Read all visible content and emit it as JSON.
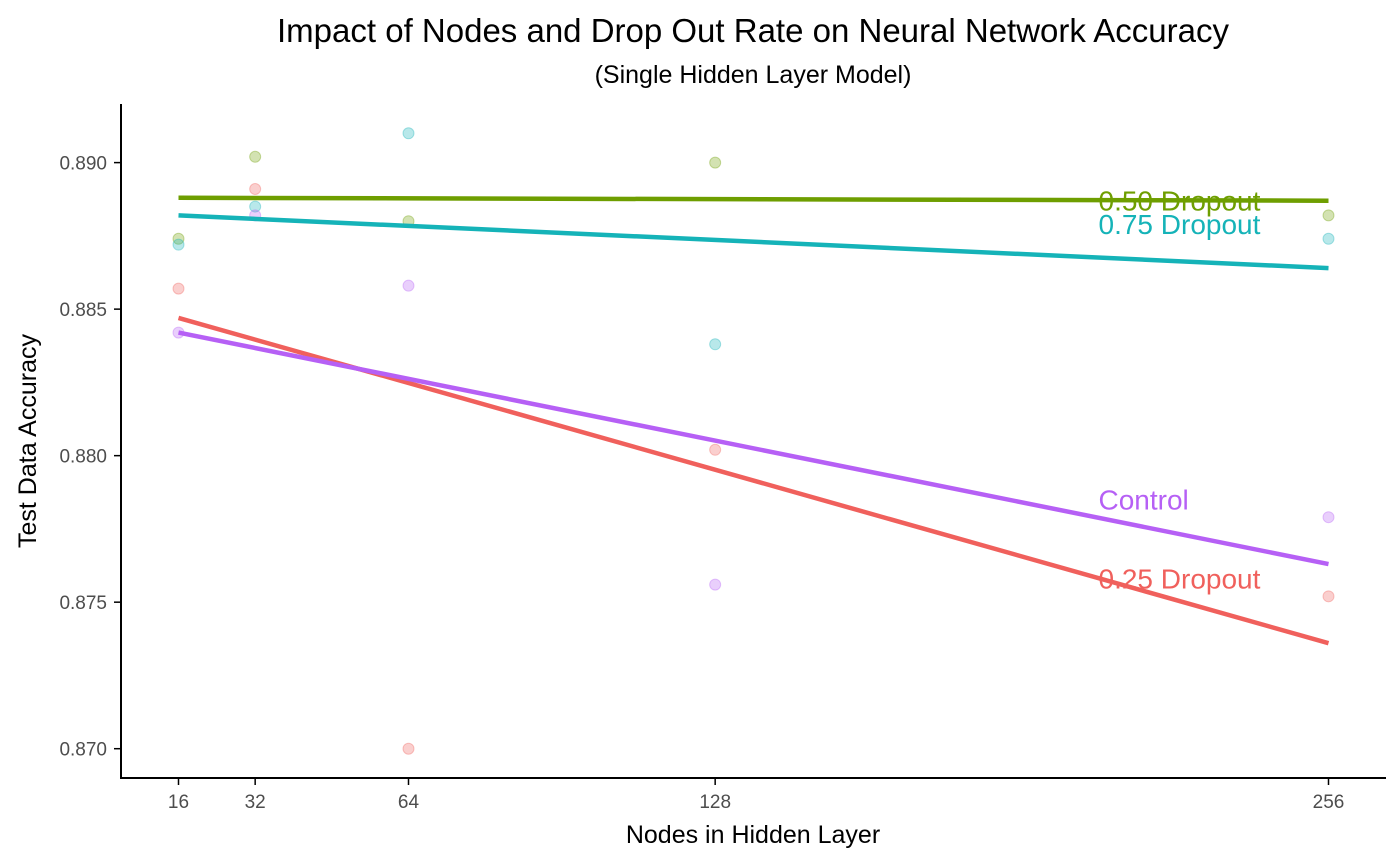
{
  "chart_data": {
    "type": "scatter",
    "title": "Impact of Nodes and Drop Out Rate on Neural Network Accuracy",
    "subtitle": "(Single Hidden Layer Model)",
    "xlabel": "Nodes in Hidden Layer",
    "ylabel": "Test Data Accuracy",
    "x_ticks": [
      16,
      32,
      64,
      128,
      256
    ],
    "y_ticks": [
      "0.870",
      "0.875",
      "0.880",
      "0.885",
      "0.890"
    ],
    "xlim": [
      4,
      268
    ],
    "ylim": [
      0.869,
      0.892
    ],
    "grid": false,
    "legend": "direct labels at right end of lines",
    "series": [
      {
        "name": "0.25 Dropout",
        "color": "#F0605C",
        "points": [
          [
            16,
            0.8857
          ],
          [
            32,
            0.8891
          ],
          [
            64,
            0.87
          ],
          [
            128,
            0.8802
          ],
          [
            256,
            0.8752
          ]
        ],
        "fit": [
          [
            16,
            0.8847
          ],
          [
            256,
            0.8736
          ]
        ]
      },
      {
        "name": "0.50 Dropout",
        "color": "#6E9E00",
        "points": [
          [
            16,
            0.8874
          ],
          [
            32,
            0.8902
          ],
          [
            64,
            0.888
          ],
          [
            128,
            0.89
          ],
          [
            256,
            0.8882
          ]
        ],
        "fit": [
          [
            16,
            0.8888
          ],
          [
            256,
            0.8887
          ]
        ]
      },
      {
        "name": "0.75 Dropout",
        "color": "#15B3B8",
        "points": [
          [
            16,
            0.8872
          ],
          [
            32,
            0.8885
          ],
          [
            64,
            0.891
          ],
          [
            128,
            0.8838
          ],
          [
            256,
            0.8874
          ]
        ],
        "fit": [
          [
            16,
            0.8882
          ],
          [
            256,
            0.8864
          ]
        ]
      },
      {
        "name": "Control",
        "color": "#B660F5",
        "points": [
          [
            16,
            0.8842
          ],
          [
            32,
            0.8882
          ],
          [
            64,
            0.8858
          ],
          [
            128,
            0.8756
          ],
          [
            256,
            0.8779
          ]
        ],
        "fit": [
          [
            16,
            0.8842
          ],
          [
            256,
            0.8763
          ]
        ]
      }
    ],
    "annotations": [
      {
        "text": "0.50 Dropout",
        "series": 1,
        "x": 208,
        "y": 0.8887
      },
      {
        "text": "0.75 Dropout",
        "series": 2,
        "x": 208,
        "y": 0.8879
      },
      {
        "text": "Control",
        "series": 3,
        "x": 208,
        "y": 0.8785
      },
      {
        "text": "0.25 Dropout",
        "series": 0,
        "x": 208,
        "y": 0.8758
      }
    ]
  }
}
